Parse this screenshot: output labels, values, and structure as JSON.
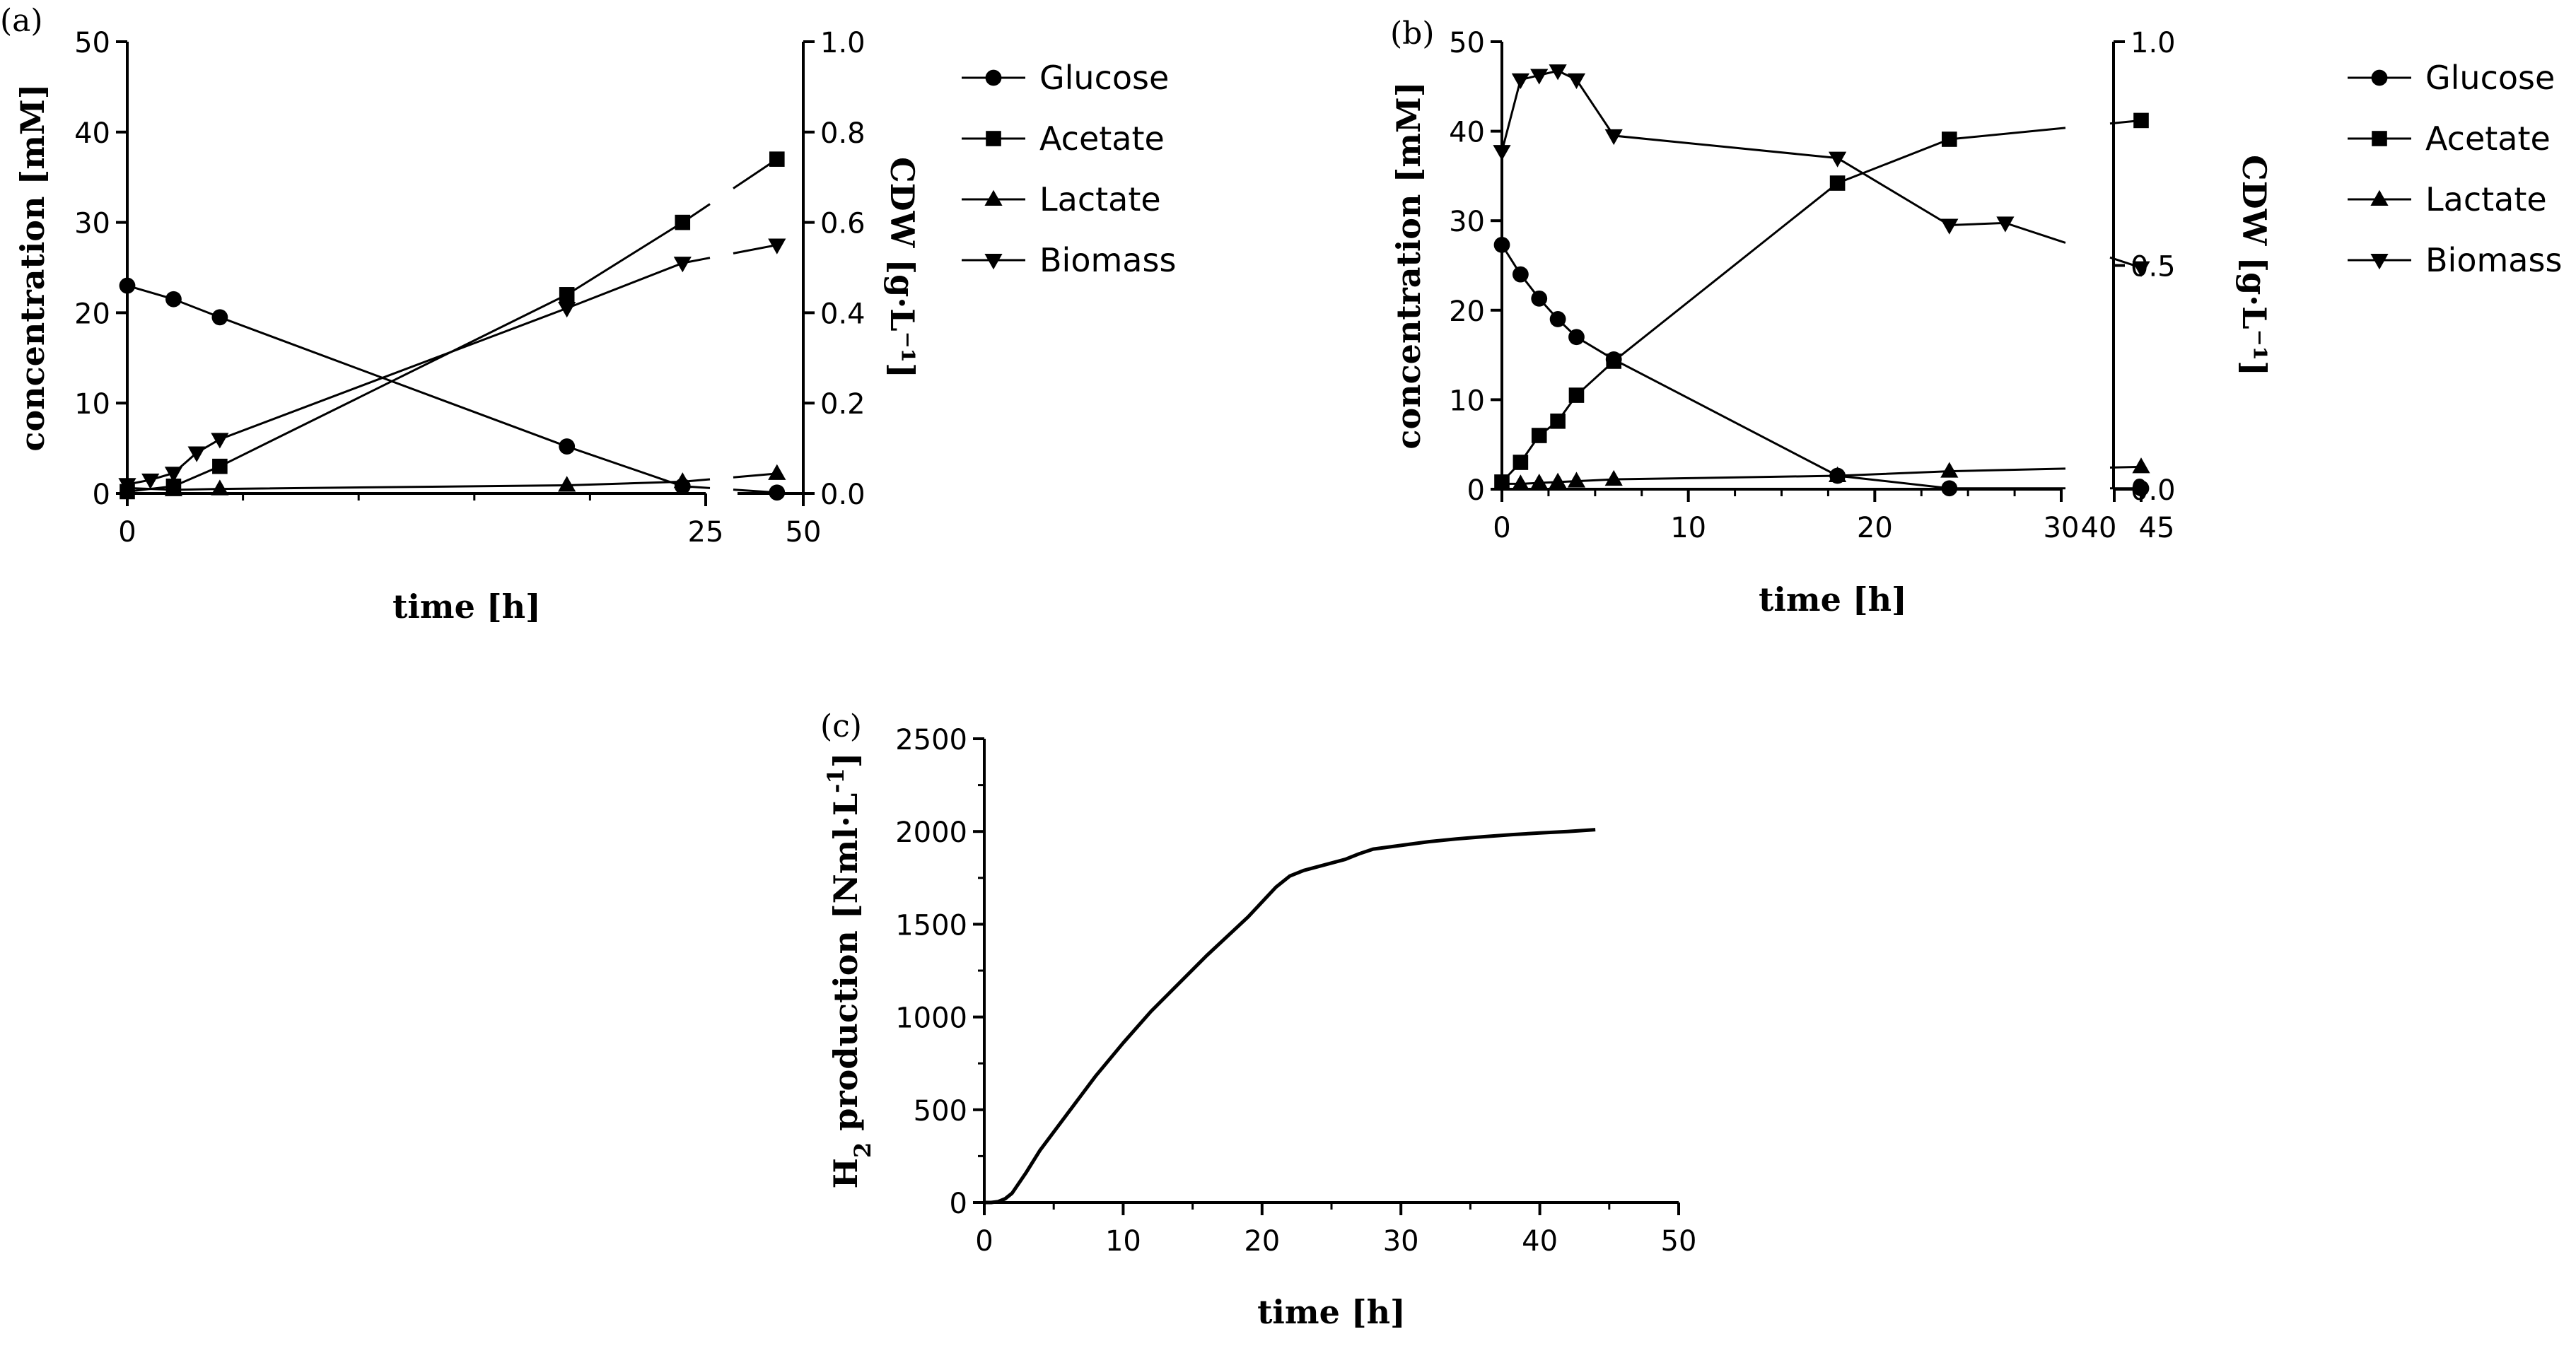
{
  "chart_data": [
    {
      "panel": "(a)",
      "type": "line",
      "xlabel": "time [h]",
      "ylabel": "concentration [mM]",
      "y2label": "CDW [g·L⁻¹]",
      "x_segments": [
        [
          0,
          25
        ],
        [
          45,
          50
        ]
      ],
      "x_ticks": [
        [
          0,
          "0"
        ],
        [
          25,
          "25"
        ],
        [
          50,
          "50"
        ]
      ],
      "ylim": [
        0,
        50
      ],
      "y_ticks": [
        [
          0,
          "0"
        ],
        [
          10,
          "10"
        ],
        [
          20,
          "20"
        ],
        [
          30,
          "30"
        ],
        [
          40,
          "40"
        ],
        [
          50,
          "50"
        ]
      ],
      "y2lim": [
        0,
        1.0
      ],
      "y2_ticks": [
        [
          0,
          "0.0"
        ],
        [
          0.2,
          "0.2"
        ],
        [
          0.4,
          "0.4"
        ],
        [
          0.6,
          "0.6"
        ],
        [
          0.8,
          "0.8"
        ],
        [
          1.0,
          "1.0"
        ]
      ],
      "legend_position": "right",
      "series": [
        {
          "name": "Glucose",
          "marker": "circle",
          "axis": "left",
          "x": [
            0,
            2,
            4,
            19,
            24,
            48
          ],
          "y": [
            23,
            21.5,
            19.5,
            5.2,
            0.8,
            0.1
          ]
        },
        {
          "name": "Acetate",
          "marker": "square",
          "axis": "left",
          "x": [
            0,
            2,
            4,
            19,
            24,
            48
          ],
          "y": [
            0.2,
            0.8,
            3.0,
            22,
            30,
            37
          ]
        },
        {
          "name": "Lactate",
          "marker": "triangle-up",
          "axis": "left",
          "x": [
            0,
            2,
            4,
            19,
            24,
            48
          ],
          "y": [
            0.6,
            0.4,
            0.5,
            0.9,
            1.3,
            2.2
          ]
        },
        {
          "name": "Biomass",
          "marker": "triangle-down",
          "axis": "right",
          "x": [
            0,
            1,
            2,
            3,
            4,
            19,
            24,
            48
          ],
          "y": [
            0.02,
            0.03,
            0.045,
            0.09,
            0.12,
            0.41,
            0.51,
            0.55
          ]
        }
      ]
    },
    {
      "panel": "(b)",
      "type": "line",
      "xlabel": "time [h]",
      "ylabel": "concentration [mM]",
      "y2label": "CDW [g·L⁻¹]",
      "x_segments": [
        [
          0,
          30
        ],
        [
          40,
          45
        ]
      ],
      "x_ticks": [
        [
          0,
          "0"
        ],
        [
          10,
          "10"
        ],
        [
          20,
          "20"
        ],
        [
          30,
          "30"
        ],
        [
          40,
          "40"
        ],
        [
          45,
          "45"
        ]
      ],
      "ylim": [
        0,
        50
      ],
      "y_ticks": [
        [
          0,
          "0"
        ],
        [
          10,
          "10"
        ],
        [
          20,
          "20"
        ],
        [
          30,
          "30"
        ],
        [
          40,
          "40"
        ],
        [
          50,
          "50"
        ]
      ],
      "y2lim": [
        0,
        1.0
      ],
      "y2_ticks": [
        [
          0,
          "0.0"
        ],
        [
          0.5,
          "0.5"
        ],
        [
          1.0,
          "1.0"
        ]
      ],
      "legend_position": "right",
      "series": [
        {
          "name": "Glucose",
          "marker": "circle",
          "axis": "left",
          "x": [
            0,
            1,
            2,
            3,
            4,
            6,
            18,
            24,
            45
          ],
          "y": [
            27.3,
            24,
            21.3,
            19,
            17,
            14.5,
            1.5,
            0.1,
            0.1
          ]
        },
        {
          "name": "Acetate",
          "marker": "square",
          "axis": "left",
          "x": [
            0,
            1,
            2,
            3,
            4,
            6,
            18,
            24,
            45
          ],
          "y": [
            0.8,
            3,
            6,
            7.6,
            10.5,
            14.3,
            34.2,
            39.1,
            41.2
          ]
        },
        {
          "name": "Lactate",
          "marker": "triangle-up",
          "axis": "left",
          "x": [
            0,
            1,
            2,
            3,
            4,
            6,
            18,
            24,
            45
          ],
          "y": [
            0.6,
            0.6,
            0.7,
            0.8,
            0.9,
            1.1,
            1.5,
            2,
            2.5
          ]
        },
        {
          "name": "Biomass",
          "marker": "triangle-down",
          "axis": "right",
          "x": [
            0,
            1,
            2,
            3,
            4,
            6,
            18,
            24,
            27,
            45
          ],
          "y": [
            0.755,
            0.915,
            0.925,
            0.935,
            0.915,
            0.79,
            0.74,
            0.59,
            0.595,
            0.495
          ]
        }
      ]
    },
    {
      "panel": "(c)",
      "type": "line",
      "xlabel": "time [h]",
      "ylabel": "H2 production [Nml·L⁻¹]",
      "ylabel_parts": {
        "main": "H",
        "sub": "2",
        "rest": " production [Nml·L",
        "sup": "-1",
        "end": "]"
      },
      "xlim": [
        0,
        50
      ],
      "x_ticks": [
        [
          0,
          "0"
        ],
        [
          10,
          "10"
        ],
        [
          20,
          "20"
        ],
        [
          30,
          "30"
        ],
        [
          40,
          "40"
        ],
        [
          50,
          "50"
        ]
      ],
      "ylim": [
        0,
        2500
      ],
      "y_ticks": [
        [
          0,
          "0"
        ],
        [
          500,
          "500"
        ],
        [
          1000,
          "1000"
        ],
        [
          1500,
          "1500"
        ],
        [
          2000,
          "2000"
        ],
        [
          2500,
          "2500"
        ]
      ],
      "series": [
        {
          "name": "H2 production",
          "x": [
            0,
            0.5,
            1,
            1.5,
            2,
            3,
            4,
            6,
            8,
            10,
            12,
            14,
            16,
            18,
            19,
            20,
            21,
            22,
            23,
            24,
            25,
            26,
            27,
            28,
            30,
            32,
            34,
            36,
            38,
            40,
            42,
            44
          ],
          "y": [
            0,
            0,
            5,
            20,
            50,
            160,
            280,
            480,
            680,
            860,
            1030,
            1180,
            1330,
            1470,
            1540,
            1620,
            1700,
            1760,
            1790,
            1810,
            1830,
            1850,
            1880,
            1905,
            1925,
            1945,
            1960,
            1972,
            1983,
            1992,
            2000,
            2010
          ]
        }
      ]
    }
  ]
}
